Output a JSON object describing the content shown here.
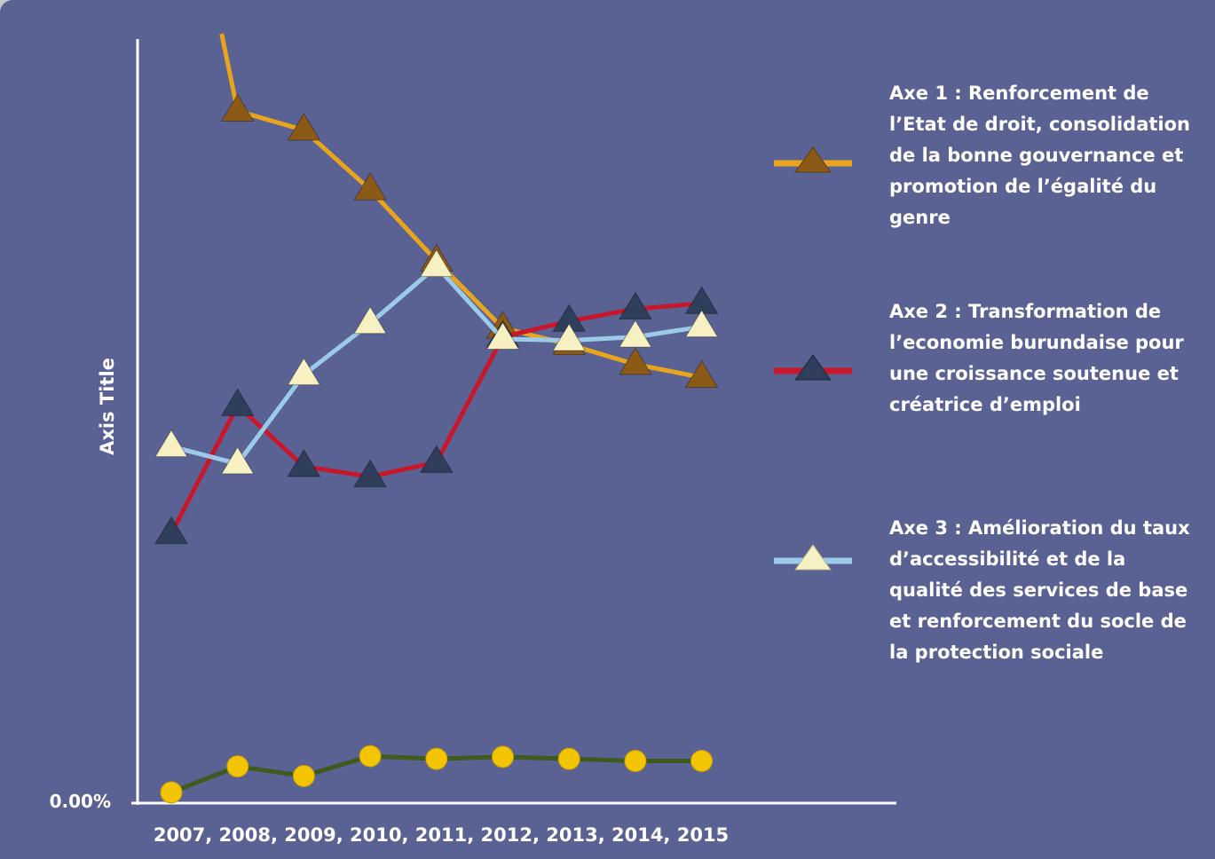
{
  "chart_data": {
    "type": "line",
    "ylabel": "Axis Title",
    "ytick_label": "0.00%",
    "x_axis_label": "2007, 2008, 2009, 2010, 2011, 2012, 2013, 2014, 2015",
    "x": [
      "2007",
      "2008",
      "2009",
      "2010",
      "2011",
      "2012",
      "2013",
      "2014",
      "2015"
    ],
    "ylim": [
      0,
      110
    ],
    "grid": false,
    "legend_position": "right",
    "series": [
      {
        "name": "Axe 1 : Renforcement de l’Etat de droit, consolidation de la bonne gouvernance et promotion de l’égalité du genre",
        "values": [
          null,
          99.5,
          96.7,
          88.0,
          77.6,
          67.8,
          65.4,
          62.5,
          60.6
        ],
        "line_color": "#e8a51c",
        "marker": "triangle",
        "marker_color": "#8b5a17"
      },
      {
        "name": "Axe 2 : Transformation de l’economie burundaise pour une croissance soutenue et créatrice d’emploi",
        "values": [
          37.8,
          56.5,
          47.6,
          46.1,
          48.2,
          66.5,
          68.8,
          70.6,
          71.4
        ],
        "line_color": "#c8172b",
        "marker": "triangle",
        "marker_color": "#2f3f5b"
      },
      {
        "name": "Axe 3 : Amélioration du taux d’accessibilité et de la qualité des services de base et renforcement du socle de la protection sociale",
        "values": [
          50.5,
          48.0,
          61.0,
          68.5,
          76.8,
          66.2,
          66.0,
          66.5,
          68.0
        ],
        "line_color": "#9ccbea",
        "marker": "triangle",
        "marker_color": "#f6f0c2"
      },
      {
        "name": "",
        "values": [
          0.0,
          3.8,
          2.4,
          5.3,
          4.9,
          5.2,
          4.9,
          4.6,
          4.6
        ],
        "line_color": "#3e5a1c",
        "marker": "circle",
        "marker_color": "#f3c404"
      }
    ]
  }
}
